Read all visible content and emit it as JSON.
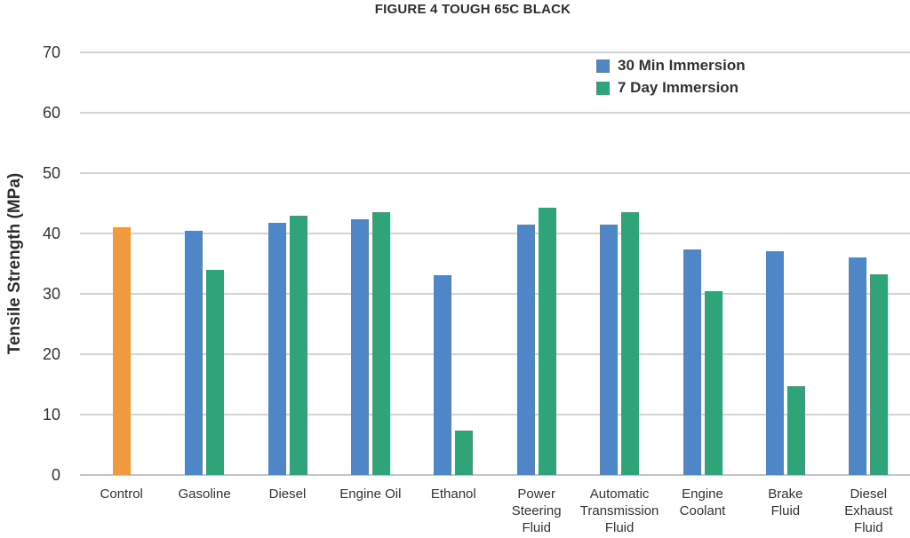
{
  "chart_data": {
    "type": "bar",
    "title": "FIGURE 4 TOUGH 65C BLACK",
    "ylabel": "Tensile Strength (MPa)",
    "ylim": [
      0,
      70
    ],
    "yticks": [
      0,
      10,
      20,
      30,
      40,
      50,
      60,
      70
    ],
    "grid": "horizontal",
    "legend_position": "top-right-inside",
    "categories": [
      "Control",
      "Gasoline",
      "Diesel",
      "Engine Oil",
      "Ethanol",
      "Power Steering Fluid",
      "Automatic Transmission Fluid",
      "Engine Coolant",
      "Brake Fluid",
      "Diesel Exhaust Fluid"
    ],
    "category_lines": [
      [
        "Control"
      ],
      [
        "Gasoline"
      ],
      [
        "Diesel"
      ],
      [
        "Engine Oil"
      ],
      [
        "Ethanol"
      ],
      [
        "Power",
        "Steering",
        "Fluid"
      ],
      [
        "Automatic",
        "Transmission",
        "Fluid"
      ],
      [
        "Engine",
        "Coolant"
      ],
      [
        "Brake",
        "Fluid"
      ],
      [
        "Diesel",
        "Exhaust",
        "Fluid"
      ]
    ],
    "series": [
      {
        "name": "30 Min Immersion",
        "color": "#4E86C8",
        "values": [
          41.0,
          40.5,
          41.8,
          42.3,
          33.1,
          41.5,
          41.5,
          37.3,
          37.1,
          36.0
        ]
      },
      {
        "name": "7 Day Immersion",
        "color": "#2FA478",
        "values": [
          null,
          34.0,
          43.0,
          43.5,
          7.3,
          44.2,
          43.5,
          30.5,
          14.7,
          33.3
        ]
      }
    ],
    "control_bar_color": "#EF9A40",
    "colors": {
      "grid": "#d4d4d4",
      "axis_line": "#c4c4c4",
      "text": "#333333",
      "title": "#2e2e2e"
    }
  }
}
